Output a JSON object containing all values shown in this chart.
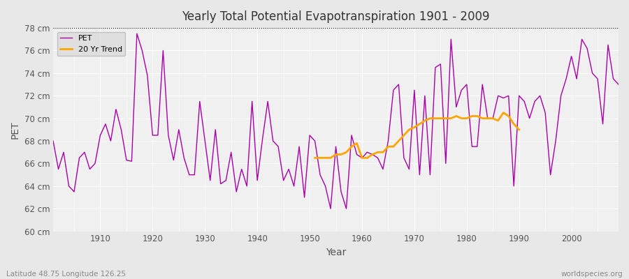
{
  "title": "Yearly Total Potential Evapotranspiration 1901 - 2009",
  "xlabel": "Year",
  "ylabel": "PET",
  "footer_left": "Latitude 48.75 Longitude 126.25",
  "footer_right": "worldspecies.org",
  "ylim": [
    60,
    78
  ],
  "ytick_labels": [
    "60 cm",
    "62 cm",
    "64 cm",
    "66 cm",
    "68 cm",
    "70 cm",
    "72 cm",
    "74 cm",
    "76 cm",
    "78 cm"
  ],
  "ytick_values": [
    60,
    62,
    64,
    66,
    68,
    70,
    72,
    74,
    76,
    78
  ],
  "xticks": [
    1910,
    1920,
    1930,
    1940,
    1950,
    1960,
    1970,
    1980,
    1990,
    2000
  ],
  "pet_color": "#AA00AA",
  "trend_color": "#FFA500",
  "bg_color": "#E8E8E8",
  "plot_bg_color": "#F0F0F0",
  "pet_values": [
    68.0,
    65.5,
    67.0,
    64.0,
    63.5,
    66.5,
    67.0,
    65.5,
    66.0,
    68.5,
    69.5,
    68.0,
    70.8,
    69.0,
    66.3,
    66.2,
    77.5,
    76.0,
    73.8,
    68.5,
    68.5,
    76.0,
    68.5,
    66.3,
    69.0,
    66.5,
    65.0,
    65.0,
    71.5,
    68.0,
    64.5,
    69.0,
    64.2,
    64.5,
    67.0,
    63.5,
    65.5,
    64.0,
    71.5,
    64.5,
    68.2,
    71.5,
    68.0,
    67.5,
    64.5,
    65.5,
    64.0,
    67.5,
    63.0,
    68.5,
    68.0,
    65.0,
    64.0,
    62.0,
    67.5,
    63.5,
    62.0,
    68.5,
    66.8,
    66.5,
    67.0,
    66.8,
    66.5,
    65.5,
    68.0,
    72.5,
    73.0,
    66.5,
    65.5,
    72.5,
    65.0,
    72.0,
    65.0,
    74.5,
    74.8,
    66.0,
    77.0,
    71.0,
    72.5,
    73.0,
    67.5,
    67.5,
    73.0,
    70.0,
    70.0,
    72.0,
    71.8,
    72.0,
    64.0,
    72.0,
    71.5,
    70.0,
    71.5,
    72.0,
    70.5,
    65.0,
    68.0,
    72.0,
    73.5,
    75.5,
    73.5,
    77.0,
    76.2,
    74.0,
    73.5,
    69.5,
    76.5,
    73.5,
    73.0
  ],
  "trend_years": [
    1951,
    1952,
    1953,
    1954,
    1955,
    1956,
    1957,
    1958,
    1959,
    1960,
    1961,
    1962,
    1963,
    1964,
    1965,
    1966,
    1967,
    1968,
    1969,
    1970,
    1971,
    1972,
    1973,
    1974,
    1975,
    1976,
    1977,
    1978,
    1979,
    1980,
    1981,
    1982,
    1983,
    1984,
    1985,
    1986,
    1987,
    1988,
    1989,
    1990
  ],
  "trend_values": [
    66.5,
    66.5,
    66.5,
    66.5,
    66.8,
    66.8,
    67.0,
    67.5,
    67.8,
    66.5,
    66.5,
    66.8,
    67.0,
    67.0,
    67.5,
    67.5,
    68.0,
    68.5,
    69.0,
    69.2,
    69.5,
    69.8,
    70.0,
    70.0,
    70.0,
    70.0,
    70.0,
    70.2,
    70.0,
    70.0,
    70.2,
    70.2,
    70.0,
    70.0,
    70.0,
    69.8,
    70.5,
    70.2,
    69.5,
    69.0
  ]
}
